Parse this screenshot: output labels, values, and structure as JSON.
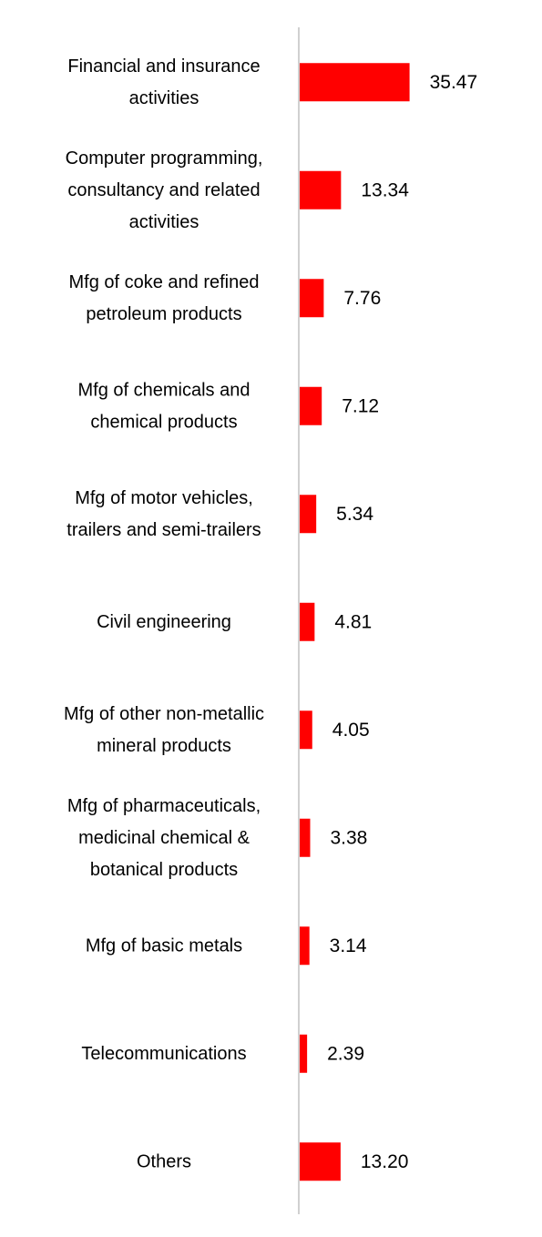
{
  "chart_data": {
    "type": "bar",
    "orientation": "horizontal",
    "categories": [
      [
        "Financial and insurance",
        "activities"
      ],
      [
        "Computer programming,",
        "consultancy and related",
        "activities"
      ],
      [
        "Mfg of coke and refined",
        "petroleum products"
      ],
      [
        "Mfg of chemicals and",
        "chemical products"
      ],
      [
        "Mfg of motor vehicles,",
        "trailers and semi-trailers"
      ],
      [
        "Civil engineering"
      ],
      [
        "Mfg of other non-metallic",
        "mineral products"
      ],
      [
        "Mfg of pharmaceuticals,",
        "medicinal chemical &",
        "botanical products"
      ],
      [
        "Mfg of basic metals"
      ],
      [
        "Telecommunications"
      ],
      [
        "Others"
      ]
    ],
    "values": [
      35.47,
      13.34,
      7.76,
      7.12,
      5.34,
      4.81,
      4.05,
      3.38,
      3.14,
      2.39,
      13.2
    ],
    "value_labels": [
      "35.47",
      "13.34",
      "7.76",
      "7.12",
      "5.34",
      "4.81",
      "4.05",
      "3.38",
      "3.14",
      "2.39",
      "13.20"
    ],
    "title": "",
    "xlabel": "",
    "ylabel": "",
    "xlim": [
      0,
      40
    ],
    "grid": false,
    "legend": "none",
    "bar_color": "#ff0000",
    "axis_color": "#d0d0d0"
  }
}
